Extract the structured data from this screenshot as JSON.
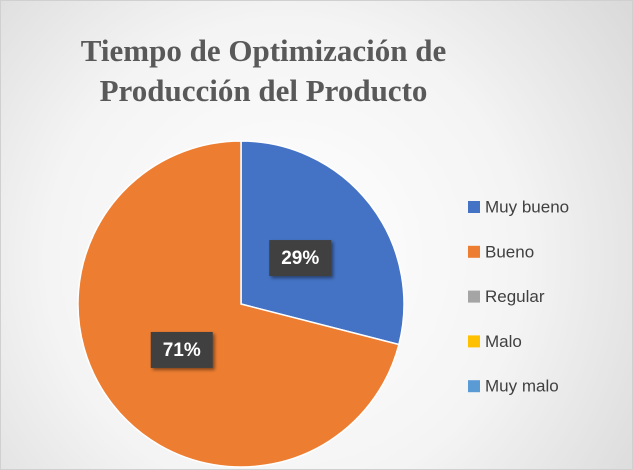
{
  "chart_data": {
    "type": "pie",
    "title": "Tiempo de Optimización de Producción del Producto",
    "categories": [
      "Muy bueno",
      "Bueno",
      "Regular",
      "Malo",
      "Muy malo"
    ],
    "values": [
      29,
      71,
      0,
      0,
      0
    ],
    "value_labels": [
      "29%",
      "71%",
      null,
      null,
      null
    ],
    "colors": [
      "#4472c4",
      "#ed7d31",
      "#a5a5a5",
      "#ffc000",
      "#5b9bd5"
    ],
    "legend": "right"
  }
}
